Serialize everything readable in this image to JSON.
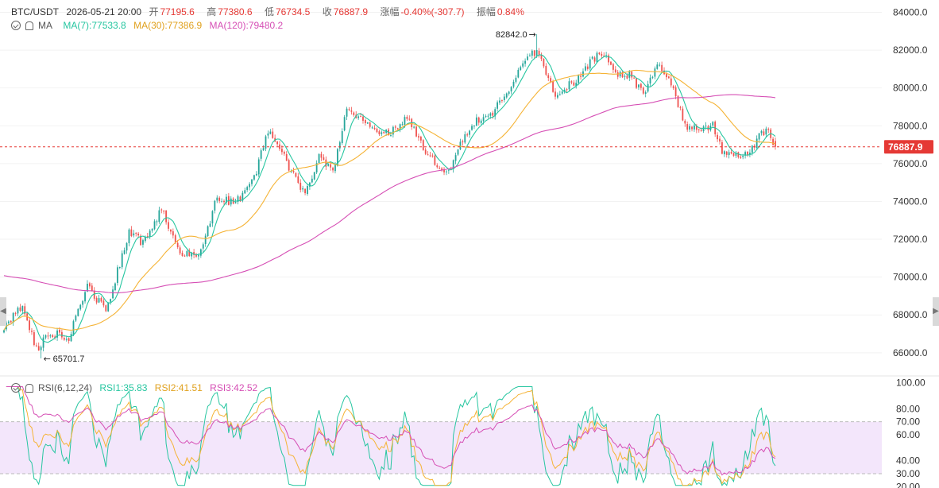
{
  "header": {
    "pair": "BTC/USDT",
    "datetime": "2026-05-21 20:00",
    "open_label": "开",
    "open": "77195.6",
    "high_label": "高",
    "high": "77380.6",
    "low_label": "低",
    "low": "76734.5",
    "close_label": "收",
    "close": "76887.9",
    "change_label": "涨幅",
    "change": "-0.40%(-307.7)",
    "amplitude_label": "振幅",
    "amplitude": "0.84%"
  },
  "ma_legend": {
    "title": "MA",
    "ma7": "MA(7):77533.8",
    "ma30": "MA(30):77386.9",
    "ma120": "MA(120):79480.2"
  },
  "rsi_legend": {
    "title": "RSI(6,12,24)",
    "rsi1": "RSI1:35.83",
    "rsi2": "RSI2:41.51",
    "rsi3": "RSI3:42.52"
  },
  "colors": {
    "up": "#26a69a",
    "down": "#ef5350",
    "ma7": "#26c6a0",
    "ma30": "#f5b335",
    "ma120": "#d64fb5",
    "rsi1": "#26c6a0",
    "rsi2": "#f5b335",
    "rsi3": "#d64fb5",
    "rsi_band": "#f3e6fb"
  },
  "chart_data": {
    "type": "candlestick",
    "price_axis": {
      "ticks": [
        "84000.0",
        "82000.0",
        "80000.0",
        "78000.0",
        "76000.0",
        "74000.0",
        "72000.0",
        "70000.0",
        "68000.0",
        "66000.0"
      ],
      "range": [
        64900,
        84650
      ]
    },
    "rsi_axis": {
      "ticks": [
        "100.00",
        "80.00",
        "70.00",
        "60.00",
        "40.00",
        "30.00",
        "20.00"
      ],
      "range": [
        19,
        101
      ],
      "band": [
        30,
        70
      ]
    },
    "last_price": "76887.9",
    "annotations": {
      "max_label": "82842.0",
      "max": 82842.0,
      "min_label": "65701.7",
      "min": 65701.7
    },
    "anchors": [
      [
        0,
        67400
      ],
      [
        8,
        68500
      ],
      [
        14,
        66200
      ],
      [
        20,
        67050
      ],
      [
        28,
        66800
      ],
      [
        36,
        69500
      ],
      [
        44,
        68200
      ],
      [
        54,
        72400
      ],
      [
        60,
        71800
      ],
      [
        68,
        73600
      ],
      [
        76,
        71200
      ],
      [
        84,
        71100
      ],
      [
        92,
        74200
      ],
      [
        100,
        73900
      ],
      [
        108,
        75200
      ],
      [
        114,
        77800
      ],
      [
        118,
        77000
      ],
      [
        124,
        75600
      ],
      [
        130,
        74300
      ],
      [
        136,
        76500
      ],
      [
        142,
        75500
      ],
      [
        148,
        78900
      ],
      [
        154,
        78400
      ],
      [
        160,
        77800
      ],
      [
        166,
        77600
      ],
      [
        174,
        78500
      ],
      [
        180,
        77100
      ],
      [
        186,
        76000
      ],
      [
        192,
        75600
      ],
      [
        198,
        77300
      ],
      [
        204,
        78300
      ],
      [
        210,
        78500
      ],
      [
        218,
        79900
      ],
      [
        224,
        81400
      ],
      [
        230,
        82000
      ],
      [
        234,
        80800
      ],
      [
        238,
        79700
      ],
      [
        246,
        80300
      ],
      [
        252,
        81200
      ],
      [
        258,
        81900
      ],
      [
        264,
        80800
      ],
      [
        270,
        80700
      ],
      [
        276,
        79700
      ],
      [
        282,
        81300
      ],
      [
        288,
        80200
      ],
      [
        294,
        78000
      ],
      [
        300,
        77700
      ],
      [
        306,
        78100
      ],
      [
        310,
        76700
      ],
      [
        316,
        76500
      ],
      [
        322,
        76500
      ],
      [
        326,
        77500
      ],
      [
        330,
        77700
      ],
      [
        333,
        76890
      ]
    ],
    "candle_count": 334,
    "ma_series": [
      {
        "name": "MA(7)",
        "period": 7,
        "value": 77533.8
      },
      {
        "name": "MA(30)",
        "period": 30,
        "value": 77386.9
      },
      {
        "name": "MA(120)",
        "period": 120,
        "value": 79480.2
      }
    ],
    "rsi_series": [
      {
        "name": "RSI1",
        "period": 6,
        "value": 35.83
      },
      {
        "name": "RSI2",
        "period": 12,
        "value": 41.51
      },
      {
        "name": "RSI3",
        "period": 24,
        "value": 42.52
      }
    ]
  }
}
